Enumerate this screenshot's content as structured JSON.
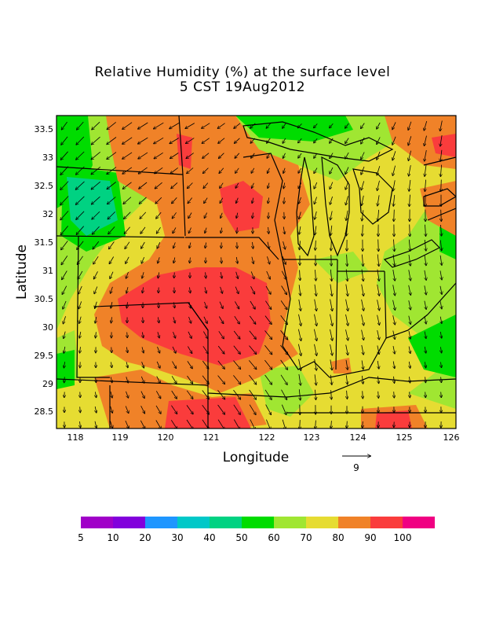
{
  "title": {
    "line1": "Relative Humidity (%) at the surface level",
    "line2": "5 CST 19Aug2012"
  },
  "axes": {
    "xlabel": "Longitude",
    "ylabel": "Latitude",
    "xticks": [
      "118",
      "119",
      "120",
      "121",
      "122",
      "123",
      "124",
      "125",
      "126"
    ],
    "yticks": [
      "33.5",
      "33",
      "32.5",
      "32",
      "31.5",
      "31",
      "30.5",
      "30",
      "29.5",
      "29",
      "28.5"
    ]
  },
  "vector_key": {
    "label": "9"
  },
  "colorbar": {
    "labels": [
      "5",
      "10",
      "20",
      "30",
      "40",
      "50",
      "60",
      "70",
      "80",
      "90",
      "100"
    ],
    "colors": [
      "#a000c8",
      "#8200dc",
      "#1e96ff",
      "#00c8c8",
      "#00d282",
      "#00dc00",
      "#a0e632",
      "#e6dc32",
      "#f08228",
      "#fa3c3c",
      "#f00082"
    ]
  },
  "palette": {
    "green60": "#00dc00",
    "teal50": "#00d282",
    "lightgreen70": "#a0e632",
    "yellow80": "#e6dc32",
    "orange90": "#f08228",
    "red100": "#fa3c3c"
  }
}
